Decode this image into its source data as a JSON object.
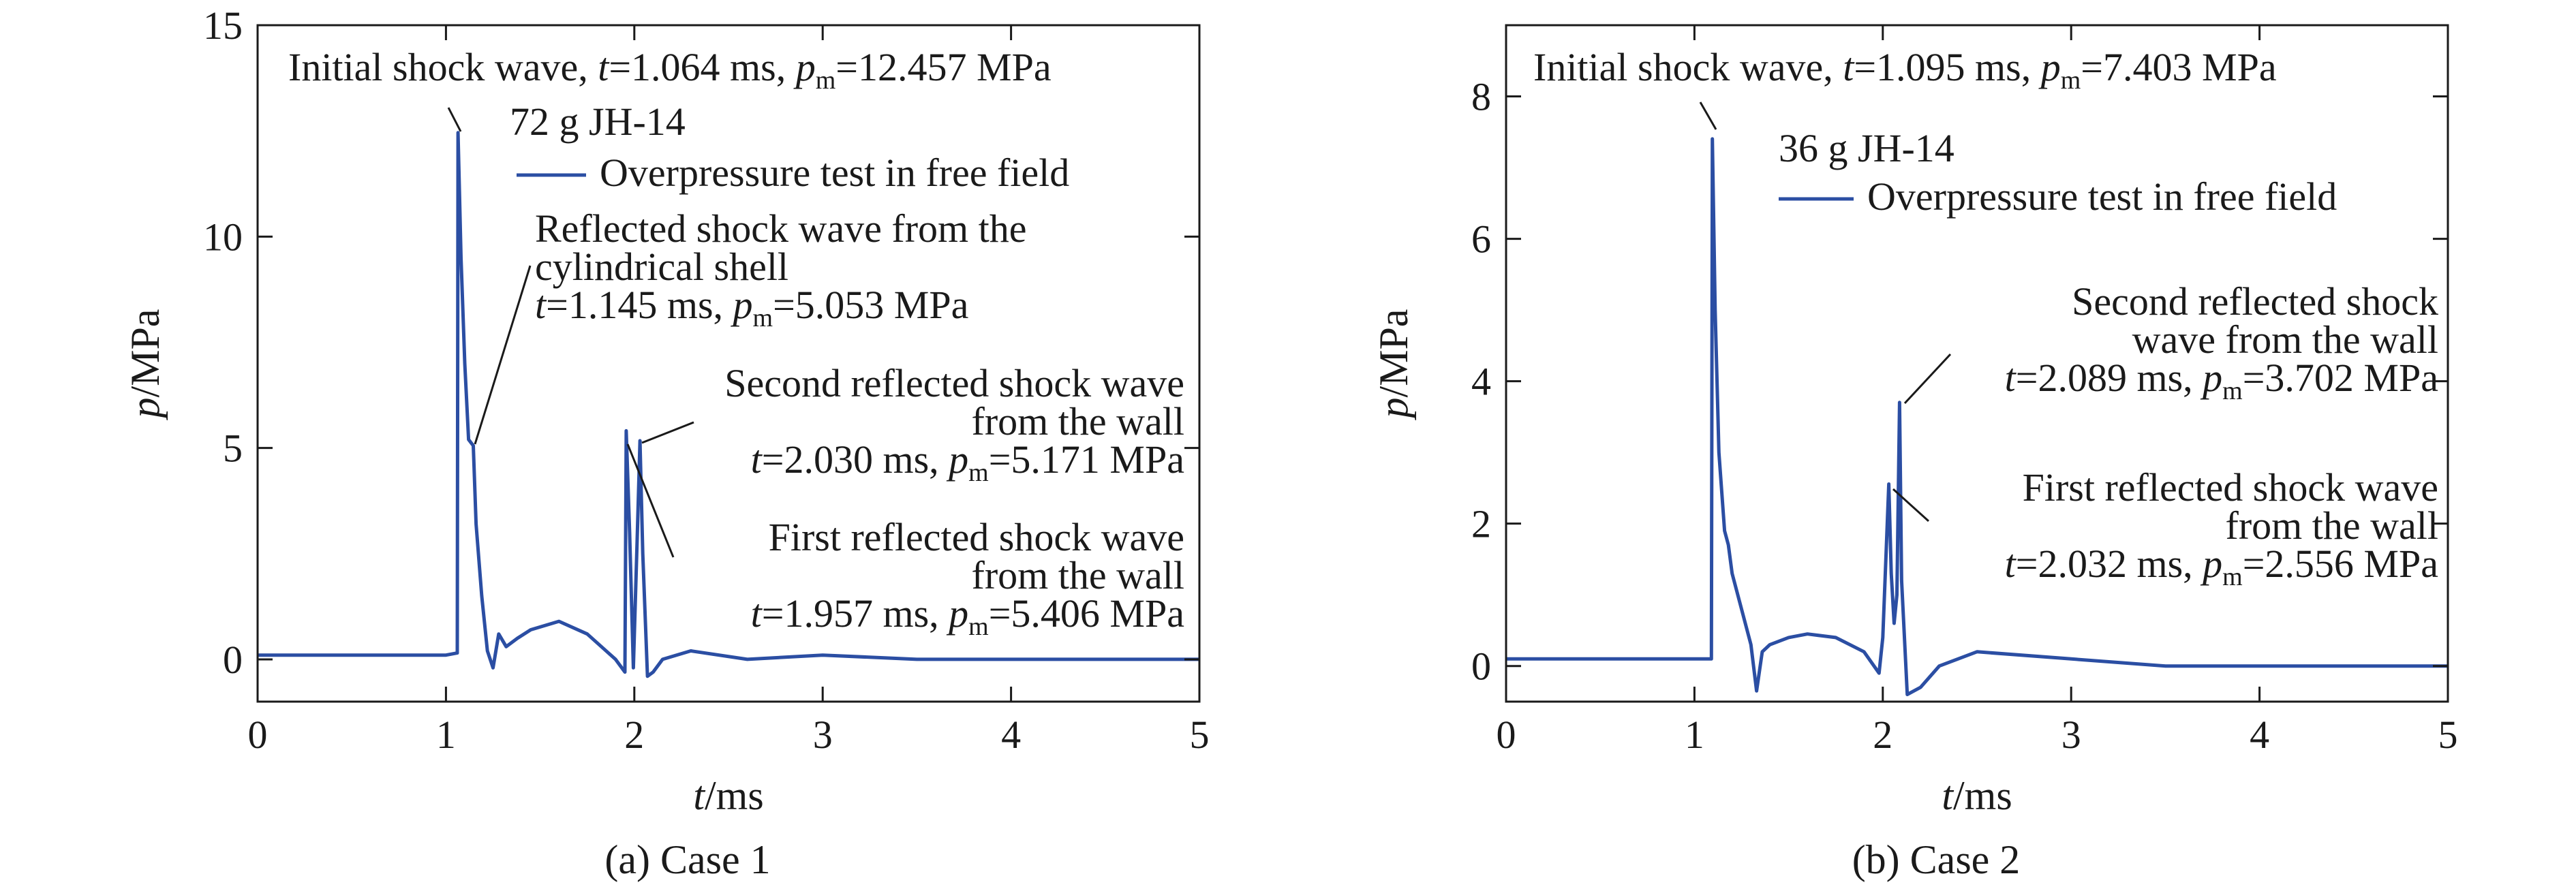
{
  "colors": {
    "series": "#2b4ea3",
    "axis": "#1a1a1a",
    "background": "#ffffff"
  },
  "chart_data": [
    {
      "type": "line",
      "caption": "(a) Case 1",
      "xlabel": {
        "var": "t",
        "unit": "/ms"
      },
      "ylabel": {
        "var": "p",
        "unit": "/MPa"
      },
      "xlim": [
        0,
        5
      ],
      "ylim": [
        -1,
        15
      ],
      "xticks": [
        0,
        1,
        2,
        3,
        4,
        5
      ],
      "yticks": [
        0,
        5,
        10,
        15
      ],
      "grid": false,
      "legend": {
        "placement": "top-center",
        "title": "72 g JH-14",
        "entries": [
          "Overpressure test in free field"
        ]
      },
      "series": [
        {
          "name": "Overpressure test in free field",
          "x": [
            0,
            0.5,
            1.0,
            1.06,
            1.064,
            1.08,
            1.1,
            1.12,
            1.145,
            1.16,
            1.19,
            1.22,
            1.25,
            1.28,
            1.32,
            1.38,
            1.45,
            1.6,
            1.75,
            1.9,
            1.95,
            1.957,
            1.975,
            1.995,
            2.015,
            2.03,
            2.045,
            2.07,
            2.1,
            2.15,
            2.3,
            2.6,
            3.0,
            3.5,
            4.0,
            4.5,
            5.0
          ],
          "y": [
            0.1,
            0.1,
            0.1,
            0.15,
            12.457,
            9.5,
            7.0,
            5.2,
            5.053,
            3.2,
            1.5,
            0.2,
            -0.2,
            0.6,
            0.3,
            0.5,
            0.7,
            0.9,
            0.6,
            0.0,
            -0.3,
            5.406,
            3.0,
            -0.2,
            2.8,
            5.171,
            2.5,
            -0.4,
            -0.3,
            0.0,
            0.2,
            0.0,
            0.1,
            0.0,
            0.0,
            0.0,
            0.0
          ]
        }
      ],
      "annotations": [
        {
          "lines": [
            {
              "pre": "Initial shock wave, ",
              "t_label": "t",
              "t_value": "=1.064 ms, ",
              "p_label": "p",
              "p_sub": "m",
              "p_value": "=12.457 MPa"
            }
          ]
        },
        {
          "lines": [
            {
              "text": "Reflected shock wave from the"
            },
            {
              "text": "cylindrical shell"
            },
            {
              "t_label": "t",
              "t_value": "=1.145 ms, ",
              "p_label": "p",
              "p_sub": "m",
              "p_value": "=5.053 MPa"
            }
          ]
        },
        {
          "lines": [
            {
              "text": "Second reflected shock wave"
            },
            {
              "text": "from the wall"
            },
            {
              "t_label": "t",
              "t_value": "=2.030 ms, ",
              "p_label": "p",
              "p_sub": "m",
              "p_value": "=5.171 MPa"
            }
          ]
        },
        {
          "lines": [
            {
              "text": "First reflected shock wave"
            },
            {
              "text": "from the wall"
            },
            {
              "t_label": "t",
              "t_value": "=1.957 ms, ",
              "p_label": "p",
              "p_sub": "m",
              "p_value": "=5.406 MPa"
            }
          ]
        }
      ]
    },
    {
      "type": "line",
      "caption": "(b) Case 2",
      "xlabel": {
        "var": "t",
        "unit": "/ms"
      },
      "ylabel": {
        "var": "p",
        "unit": "/MPa"
      },
      "xlim": [
        0,
        5
      ],
      "ylim": [
        -0.5,
        9
      ],
      "xticks": [
        0,
        1,
        2,
        3,
        4,
        5
      ],
      "yticks": [
        0,
        2,
        4,
        6,
        8
      ],
      "grid": false,
      "legend": {
        "placement": "top-center",
        "title": "36 g JH-14",
        "entries": [
          "Overpressure test in free field"
        ]
      },
      "series": [
        {
          "name": "Overpressure test in free field",
          "x": [
            0,
            0.5,
            1.0,
            1.09,
            1.095,
            1.11,
            1.13,
            1.16,
            1.18,
            1.2,
            1.25,
            1.3,
            1.33,
            1.36,
            1.4,
            1.5,
            1.6,
            1.75,
            1.9,
            1.98,
            2.0,
            2.032,
            2.045,
            2.06,
            2.075,
            2.089,
            2.1,
            2.13,
            2.2,
            2.3,
            2.5,
            3.0,
            3.5,
            4.0,
            4.5,
            5.0
          ],
          "y": [
            0.1,
            0.1,
            0.1,
            0.1,
            7.403,
            5.0,
            3.0,
            1.9,
            1.7,
            1.3,
            0.8,
            0.3,
            -0.35,
            0.2,
            0.3,
            0.4,
            0.45,
            0.4,
            0.2,
            -0.1,
            0.4,
            2.556,
            1.3,
            0.6,
            1.0,
            3.702,
            1.2,
            -0.4,
            -0.3,
            0.0,
            0.2,
            0.1,
            0.0,
            0.0,
            0.0,
            0.0
          ]
        }
      ],
      "annotations": [
        {
          "lines": [
            {
              "pre": "Initial shock wave, ",
              "t_label": "t",
              "t_value": "=1.095 ms, ",
              "p_label": "p",
              "p_sub": "m",
              "p_value": "=7.403 MPa"
            }
          ]
        },
        {
          "lines": [
            {
              "text": "Second reflected shock"
            },
            {
              "text": "wave from the wall"
            },
            {
              "t_label": "t",
              "t_value": "=2.089 ms, ",
              "p_label": "p",
              "p_sub": "m",
              "p_value": "=3.702 MPa"
            }
          ]
        },
        {
          "lines": [
            {
              "text": "First reflected shock wave"
            },
            {
              "text": "from the wall"
            },
            {
              "t_label": "t",
              "t_value": "=2.032 ms, ",
              "p_label": "p",
              "p_sub": "m",
              "p_value": "=2.556 MPa"
            }
          ]
        }
      ]
    }
  ]
}
